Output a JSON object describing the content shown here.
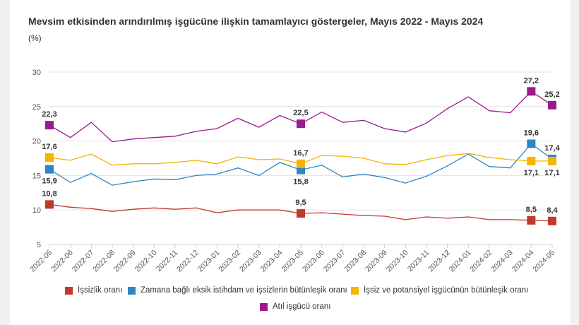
{
  "chart_data": {
    "type": "line",
    "title": "Mevsim etkisinden arındırılmış işgücüne ilişkin tamamlayıcı göstergeler, Mayıs 2022 - Mayıs 2024",
    "unit": "(%)",
    "ylim": [
      5,
      30
    ],
    "yticks": [
      "5",
      "10",
      "15",
      "20",
      "25",
      "30"
    ],
    "categories": [
      "2022-05",
      "2022-06",
      "2022-07",
      "2022-08",
      "2022-09",
      "2022-10",
      "2022-11",
      "2022-12",
      "2023-01",
      "2023-02",
      "2023-03",
      "2023-04",
      "2023-05",
      "2023-06",
      "2023-07",
      "2023-08",
      "2023-09",
      "2023-10",
      "2023-11",
      "2023-12",
      "2024-01",
      "2024-02",
      "2024-03",
      "2024-04",
      "2024-05"
    ],
    "series": [
      {
        "name": "İşsizlik oranı",
        "color": "#c0392b",
        "values": [
          10.8,
          10.4,
          10.2,
          9.8,
          10.1,
          10.3,
          10.1,
          10.3,
          9.6,
          10.0,
          10.0,
          10.0,
          9.5,
          9.6,
          9.4,
          9.2,
          9.1,
          8.6,
          9.0,
          8.8,
          9.0,
          8.6,
          8.6,
          8.5,
          8.4
        ],
        "labels": [
          {
            "i": 0,
            "text": "10,8",
            "pos": "above"
          },
          {
            "i": 12,
            "text": "9,5",
            "pos": "above"
          },
          {
            "i": 23,
            "text": "8,5",
            "pos": "above"
          },
          {
            "i": 24,
            "text": "8,4",
            "pos": "above"
          }
        ]
      },
      {
        "name": "Zamana bağlı eksik istihdam ve işsizlerin bütünleşik oranı",
        "color": "#2e86c1",
        "values": [
          15.9,
          14.0,
          15.3,
          13.6,
          14.1,
          14.5,
          14.4,
          15.0,
          15.2,
          16.1,
          15.0,
          16.9,
          15.8,
          16.5,
          14.8,
          15.2,
          14.7,
          13.9,
          14.9,
          16.4,
          18.1,
          16.3,
          16.1,
          19.6,
          17.4
        ],
        "labels": [
          {
            "i": 0,
            "text": "15,9",
            "pos": "below"
          },
          {
            "i": 12,
            "text": "15,8",
            "pos": "below"
          },
          {
            "i": 23,
            "text": "19,6",
            "pos": "above"
          },
          {
            "i": 24,
            "text": "17,4",
            "pos": "above"
          }
        ]
      },
      {
        "name": "İşsiz ve potansiyel işgücünün bütünleşik oranı",
        "color": "#f4b400",
        "values": [
          17.6,
          17.2,
          18.1,
          16.5,
          16.7,
          16.7,
          16.9,
          17.2,
          16.7,
          17.7,
          17.3,
          17.4,
          16.7,
          17.9,
          17.8,
          17.5,
          16.7,
          16.6,
          17.3,
          17.9,
          18.2,
          17.6,
          17.3,
          17.1,
          17.1
        ],
        "labels": [
          {
            "i": 0,
            "text": "17,6",
            "pos": "above"
          },
          {
            "i": 12,
            "text": "16,7",
            "pos": "above"
          },
          {
            "i": 23,
            "text": "17,1",
            "pos": "below"
          },
          {
            "i": 24,
            "text": "17,1",
            "pos": "below"
          }
        ]
      },
      {
        "name": "Atıl işgücü oranı",
        "color": "#9b1b8e",
        "values": [
          22.3,
          20.5,
          22.7,
          19.9,
          20.3,
          20.5,
          20.7,
          21.4,
          21.8,
          23.3,
          22.0,
          23.7,
          22.5,
          24.2,
          22.7,
          23.0,
          21.8,
          21.3,
          22.6,
          24.7,
          26.4,
          24.4,
          24.1,
          27.2,
          25.2
        ],
        "labels": [
          {
            "i": 0,
            "text": "22,3",
            "pos": "above"
          },
          {
            "i": 12,
            "text": "22,5",
            "pos": "above"
          },
          {
            "i": 23,
            "text": "27,2",
            "pos": "above"
          },
          {
            "i": 24,
            "text": "25,2",
            "pos": "above"
          }
        ]
      }
    ],
    "marker_indices": [
      0,
      12,
      23,
      24
    ]
  }
}
